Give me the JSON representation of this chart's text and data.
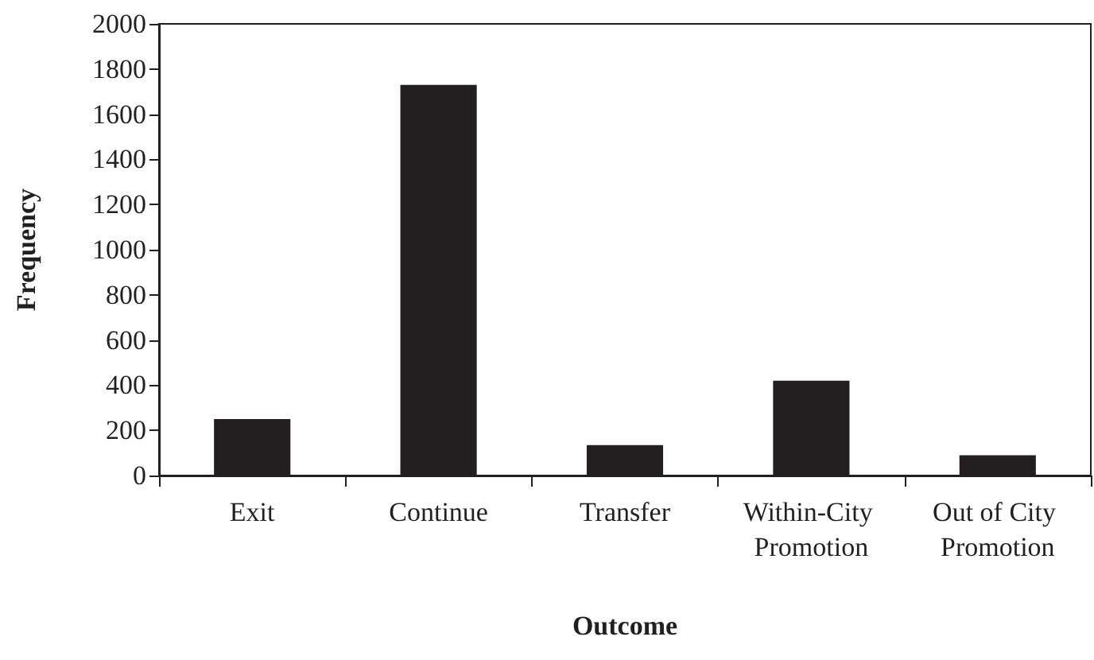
{
  "chart_data": {
    "type": "bar",
    "xlabel": "Outcome",
    "ylabel": "Frequency",
    "categories": [
      "Exit",
      "Continue",
      "Transfer",
      "Within-City Promotion",
      "Out of City Promotion"
    ],
    "values": [
      250,
      1730,
      135,
      420,
      90
    ],
    "color": "#231f20",
    "ylim": [
      0,
      2000
    ],
    "yticks": [
      0,
      200,
      400,
      600,
      800,
      1000,
      1200,
      1400,
      1600,
      1800,
      2000
    ],
    "grid": false
  }
}
